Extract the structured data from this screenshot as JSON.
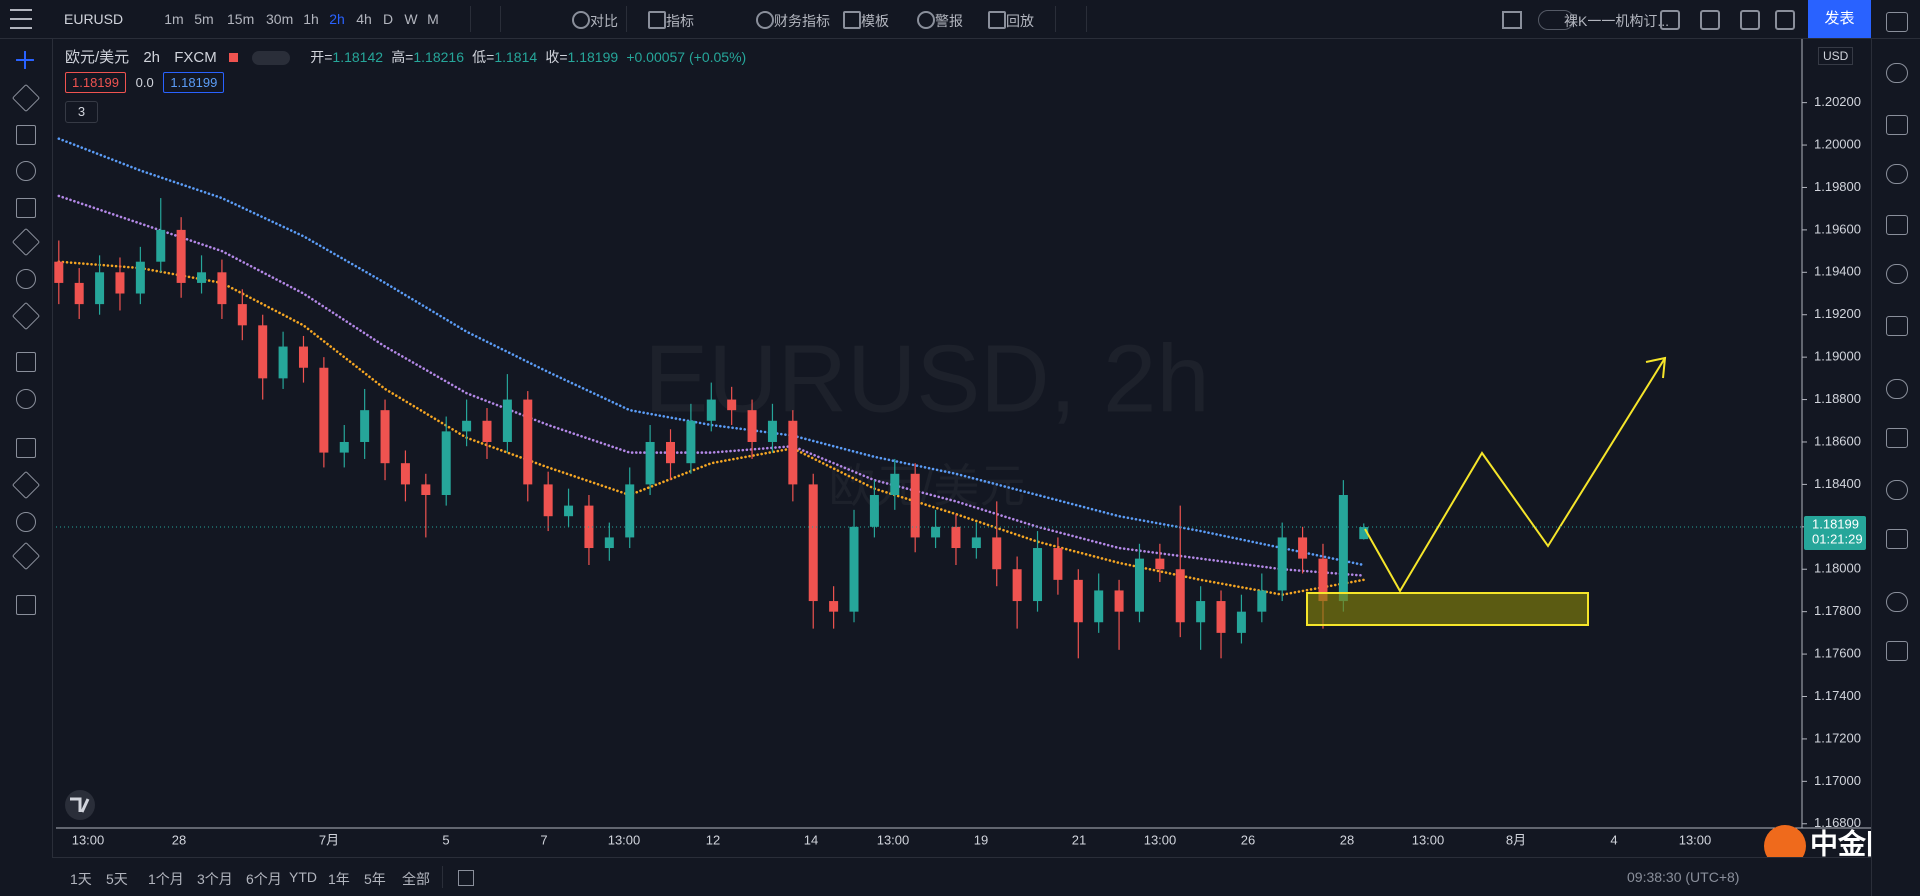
{
  "toolbar": {
    "symbol": "EURUSD",
    "intervals": [
      "1m",
      "5m",
      "15m",
      "30m",
      "1h",
      "2h",
      "4h",
      "D",
      "W",
      "M"
    ],
    "active_interval": "2h",
    "tools": [
      "对比",
      "指标",
      "财务指标",
      "模板",
      "警报",
      "回放"
    ],
    "template": "裸K一一机构订...",
    "publish": "发表"
  },
  "legend": {
    "name": "欧元/美元",
    "interval": "2h",
    "source": "FXCM",
    "open_label": "开=",
    "high_label": "高=",
    "low_label": "低=",
    "close_label": "收=",
    "change": "+0.00057 (+0.05%)",
    "bid": 1.18199,
    "spread": "0.0",
    "ask": 1.18199,
    "indicators": 3
  },
  "chart_data": {
    "type": "candlestick",
    "watermark": "EURUSD, 2h",
    "watermark_sub": "欧元/美元",
    "currency": "USD",
    "up_color": "#26a69a",
    "down_color": "#ef5350",
    "ohlc": [
      [
        1.1945,
        1.1955,
        1.1925,
        1.1935
      ],
      [
        1.1935,
        1.1942,
        1.1918,
        1.1925
      ],
      [
        1.1925,
        1.1948,
        1.192,
        1.194
      ],
      [
        1.194,
        1.1947,
        1.1922,
        1.193
      ],
      [
        1.193,
        1.1952,
        1.1925,
        1.1945
      ],
      [
        1.1945,
        1.1975,
        1.194,
        1.196
      ],
      [
        1.196,
        1.1966,
        1.1928,
        1.1935
      ],
      [
        1.1935,
        1.1948,
        1.193,
        1.194
      ],
      [
        1.194,
        1.1946,
        1.1918,
        1.1925
      ],
      [
        1.1925,
        1.1932,
        1.1908,
        1.1915
      ],
      [
        1.1915,
        1.192,
        1.188,
        1.189
      ],
      [
        1.189,
        1.1912,
        1.1885,
        1.1905
      ],
      [
        1.1905,
        1.191,
        1.1888,
        1.1895
      ],
      [
        1.1895,
        1.19,
        1.1848,
        1.1855
      ],
      [
        1.1855,
        1.1868,
        1.1848,
        1.186
      ],
      [
        1.186,
        1.1885,
        1.1852,
        1.1875
      ],
      [
        1.1875,
        1.188,
        1.1842,
        1.185
      ],
      [
        1.185,
        1.1856,
        1.1832,
        1.184
      ],
      [
        1.184,
        1.1845,
        1.1815,
        1.1835
      ],
      [
        1.1835,
        1.1872,
        1.183,
        1.1865
      ],
      [
        1.1865,
        1.188,
        1.1858,
        1.187
      ],
      [
        1.187,
        1.1876,
        1.1852,
        1.186
      ],
      [
        1.186,
        1.1892,
        1.1855,
        1.188
      ],
      [
        1.188,
        1.1884,
        1.1832,
        1.184
      ],
      [
        1.184,
        1.1846,
        1.1818,
        1.1825
      ],
      [
        1.1825,
        1.1838,
        1.182,
        1.183
      ],
      [
        1.183,
        1.1835,
        1.1802,
        1.181
      ],
      [
        1.181,
        1.1822,
        1.1804,
        1.1815
      ],
      [
        1.1815,
        1.1848,
        1.181,
        1.184
      ],
      [
        1.184,
        1.1868,
        1.1835,
        1.186
      ],
      [
        1.186,
        1.1866,
        1.1842,
        1.185
      ],
      [
        1.185,
        1.1878,
        1.1845,
        1.187
      ],
      [
        1.187,
        1.1888,
        1.1865,
        1.188
      ],
      [
        1.188,
        1.1886,
        1.1868,
        1.1875
      ],
      [
        1.1875,
        1.188,
        1.1852,
        1.186
      ],
      [
        1.186,
        1.1878,
        1.1855,
        1.187
      ],
      [
        1.187,
        1.1875,
        1.1832,
        1.184
      ],
      [
        1.184,
        1.1845,
        1.1772,
        1.1785
      ],
      [
        1.1785,
        1.1792,
        1.1772,
        1.178
      ],
      [
        1.178,
        1.1828,
        1.1775,
        1.182
      ],
      [
        1.182,
        1.1842,
        1.1815,
        1.1835
      ],
      [
        1.1835,
        1.1852,
        1.1828,
        1.1845
      ],
      [
        1.1845,
        1.185,
        1.1808,
        1.1815
      ],
      [
        1.1815,
        1.1828,
        1.181,
        1.182
      ],
      [
        1.182,
        1.1826,
        1.1802,
        1.181
      ],
      [
        1.181,
        1.1822,
        1.1805,
        1.1815
      ],
      [
        1.1815,
        1.1832,
        1.1792,
        1.18
      ],
      [
        1.18,
        1.1806,
        1.1772,
        1.1785
      ],
      [
        1.1785,
        1.1818,
        1.178,
        1.181
      ],
      [
        1.181,
        1.1815,
        1.1788,
        1.1795
      ],
      [
        1.1795,
        1.18,
        1.1758,
        1.1775
      ],
      [
        1.1775,
        1.1798,
        1.177,
        1.179
      ],
      [
        1.179,
        1.1795,
        1.1762,
        1.178
      ],
      [
        1.178,
        1.1812,
        1.1775,
        1.1805
      ],
      [
        1.1805,
        1.1812,
        1.1794,
        1.18
      ],
      [
        1.18,
        1.183,
        1.1768,
        1.1775
      ],
      [
        1.1775,
        1.1792,
        1.1762,
        1.1785
      ],
      [
        1.1785,
        1.179,
        1.1758,
        1.177
      ],
      [
        1.177,
        1.1788,
        1.1765,
        1.178
      ],
      [
        1.178,
        1.1798,
        1.1775,
        1.179
      ],
      [
        1.179,
        1.1822,
        1.1785,
        1.1815
      ],
      [
        1.1815,
        1.182,
        1.1798,
        1.1805
      ],
      [
        1.1805,
        1.1812,
        1.1772,
        1.1785
      ],
      [
        1.1785,
        1.1842,
        1.178,
        1.1835
      ],
      [
        1.18142,
        1.18216,
        1.1814,
        1.18199
      ]
    ],
    "series": [
      {
        "color": "#5b9cf6",
        "x": [
          0,
          4,
          8,
          12,
          16,
          20,
          24,
          28,
          32,
          36,
          40,
          44,
          48,
          52,
          56,
          60,
          64
        ],
        "values": [
          1.2003,
          1.1988,
          1.1975,
          1.1957,
          1.1935,
          1.1912,
          1.1893,
          1.1875,
          1.1868,
          1.1863,
          1.1853,
          1.1845,
          1.1835,
          1.1825,
          1.1818,
          1.181,
          1.1802
        ]
      },
      {
        "color": "#b388e6",
        "x": [
          0,
          4,
          8,
          12,
          16,
          20,
          24,
          28,
          32,
          36,
          40,
          44,
          48,
          52,
          56,
          60,
          64
        ],
        "values": [
          1.1976,
          1.1963,
          1.195,
          1.193,
          1.1905,
          1.1883,
          1.1868,
          1.1855,
          1.1855,
          1.1858,
          1.1842,
          1.1832,
          1.182,
          1.181,
          1.1805,
          1.18,
          1.1797
        ]
      },
      {
        "color": "#f5a623",
        "x": [
          0,
          4,
          8,
          12,
          16,
          20,
          24,
          28,
          32,
          36,
          40,
          44,
          48,
          52,
          56,
          60,
          64
        ],
        "values": [
          1.1945,
          1.1942,
          1.1935,
          1.1915,
          1.1885,
          1.1862,
          1.1848,
          1.1835,
          1.185,
          1.1857,
          1.1838,
          1.1826,
          1.1813,
          1.1803,
          1.1795,
          1.1788,
          1.1795
        ]
      }
    ],
    "ylim": [
      1.1678,
      1.205
    ],
    "yticks": [
      {
        "value": 1.168,
        "label": "1.16800"
      },
      {
        "value": 1.17,
        "label": "1.17000"
      },
      {
        "value": 1.172,
        "label": "1.17200"
      },
      {
        "value": 1.174,
        "label": "1.17400"
      },
      {
        "value": 1.176,
        "label": "1.17600"
      },
      {
        "value": 1.178,
        "label": "1.17800"
      },
      {
        "value": 1.18,
        "label": "1.18000"
      },
      {
        "value": 1.182,
        "label": "1.18200"
      },
      {
        "value": 1.184,
        "label": "1.18400"
      },
      {
        "value": 1.186,
        "label": "1.18600"
      },
      {
        "value": 1.188,
        "label": "1.18800"
      },
      {
        "value": 1.19,
        "label": "1.19000"
      },
      {
        "value": 1.192,
        "label": "1.19200"
      },
      {
        "value": 1.194,
        "label": "1.19400"
      },
      {
        "value": 1.196,
        "label": "1.19600"
      },
      {
        "value": 1.198,
        "label": "1.19800"
      },
      {
        "value": 1.2,
        "label": "1.20000"
      },
      {
        "value": 1.202,
        "label": "1.20200"
      }
    ],
    "grid": false,
    "time_labels": [
      "13:00",
      "28",
      "7月",
      "5",
      "7",
      "13:00",
      "12",
      "14",
      "13:00",
      "19",
      "21",
      "13:00",
      "26",
      "28",
      "13:00",
      "8月",
      "4",
      "13:00"
    ],
    "countdown": "01:21:29"
  },
  "bottom": {
    "ranges": [
      "1天",
      "5天",
      "1个月",
      "3个月",
      "6个月",
      "YTD",
      "1年",
      "5年",
      "全部"
    ],
    "clock": "09:38:30 (UTC+8)",
    "brand": "中金网",
    "brand_url": "CNGOLD.COM.CN"
  }
}
